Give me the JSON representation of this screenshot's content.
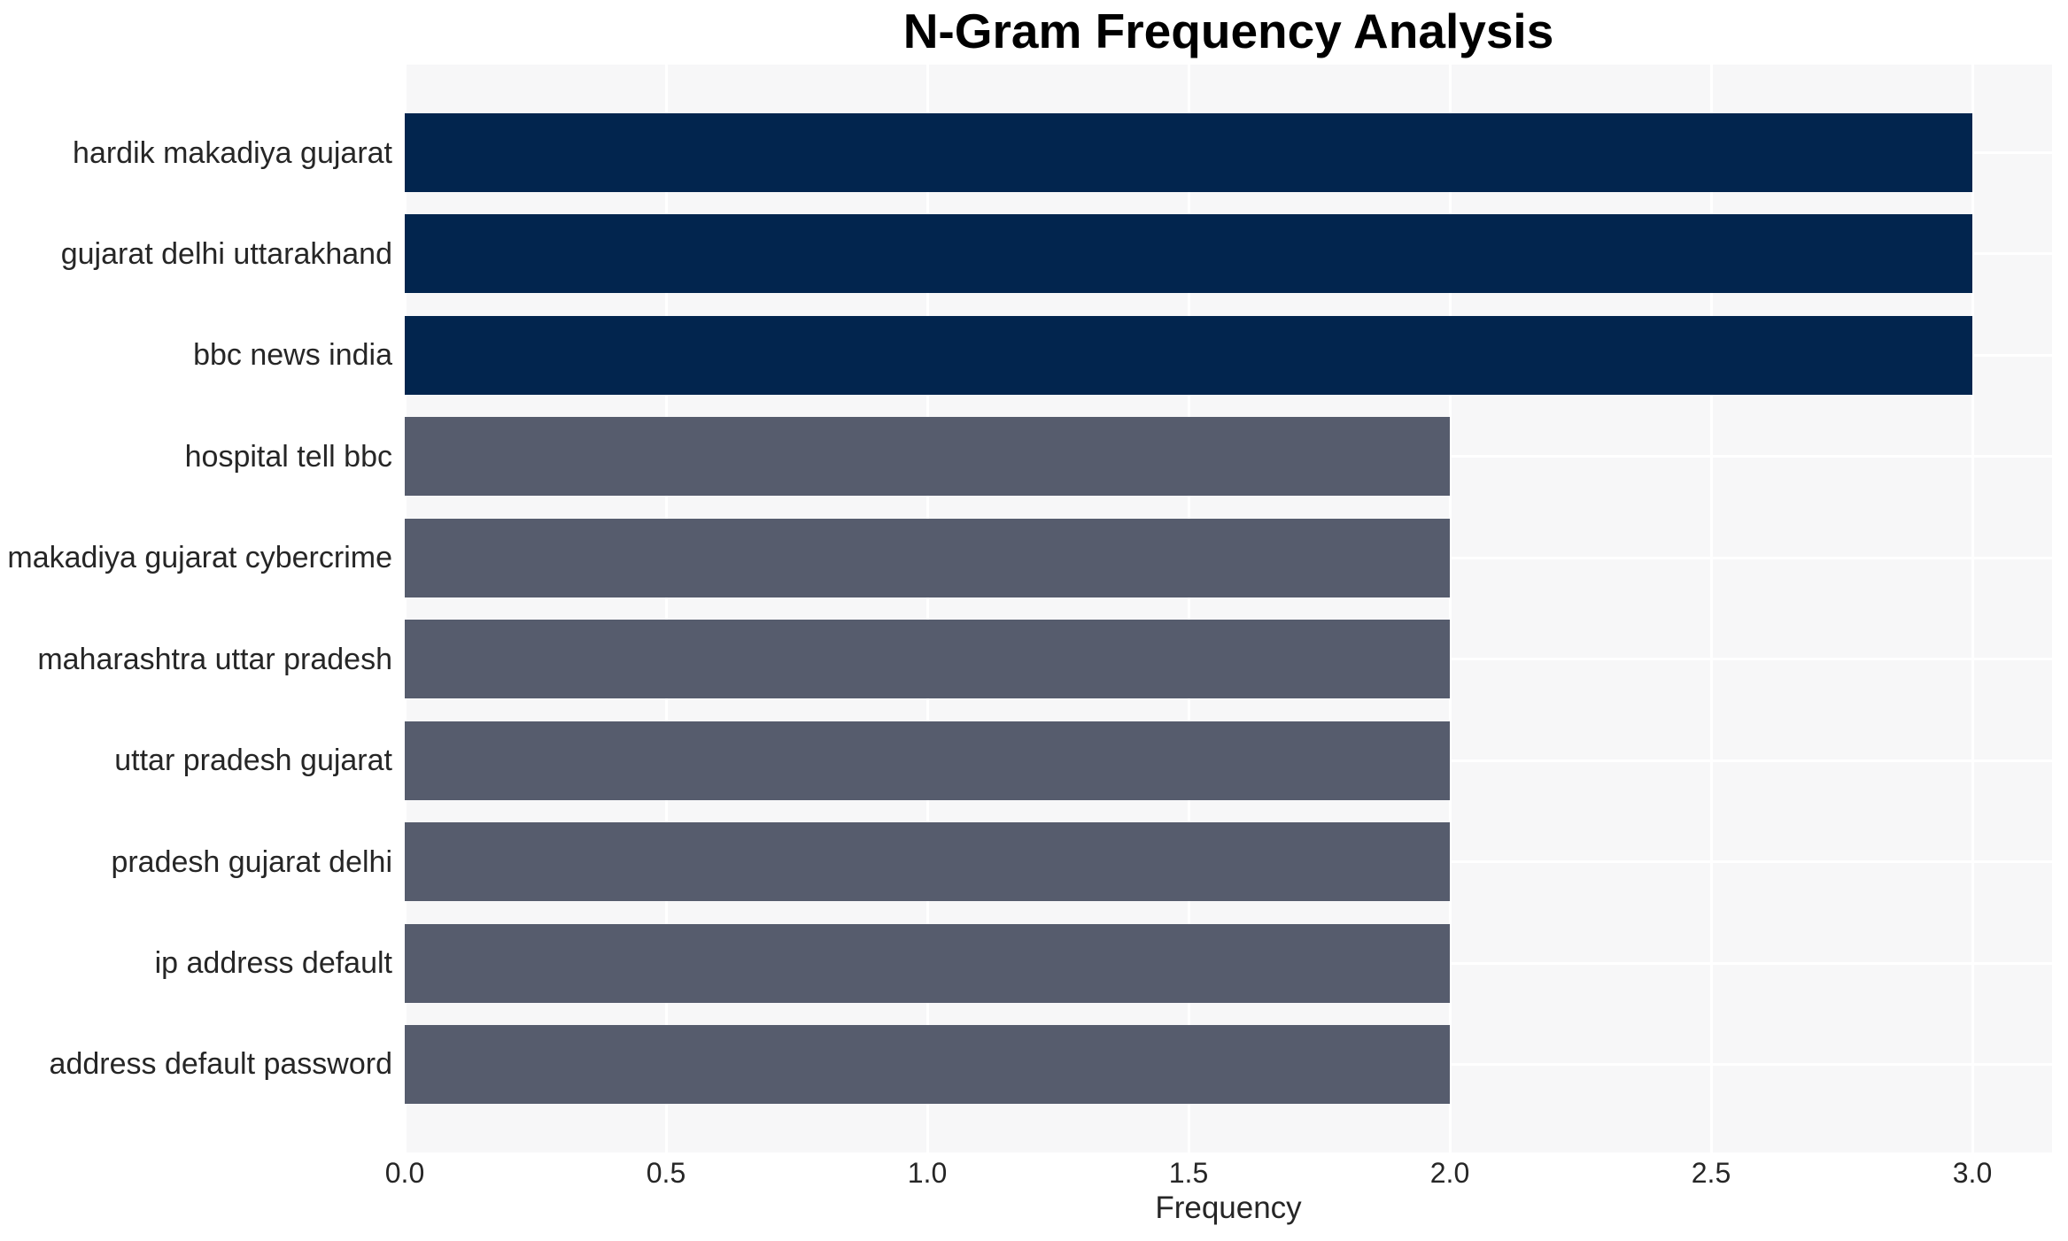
{
  "chart_data": {
    "type": "bar",
    "orientation": "horizontal",
    "title": "N-Gram Frequency Analysis",
    "xlabel": "Frequency",
    "ylabel": "",
    "categories": [
      "hardik makadiya gujarat",
      "gujarat delhi uttarakhand",
      "bbc news india",
      "hospital tell bbc",
      "makadiya gujarat cybercrime",
      "maharashtra uttar pradesh",
      "uttar pradesh gujarat",
      "pradesh gujarat delhi",
      "ip address default",
      "address default password"
    ],
    "values": [
      3,
      3,
      3,
      2,
      2,
      2,
      2,
      2,
      2,
      2
    ],
    "bar_colors": [
      "#02254e",
      "#02254e",
      "#02254e",
      "#565c6d",
      "#565c6d",
      "#565c6d",
      "#565c6d",
      "#565c6d",
      "#565c6d",
      "#565c6d"
    ],
    "xticks": [
      "0.0",
      "0.5",
      "1.0",
      "1.5",
      "2.0",
      "2.5",
      "3.0"
    ],
    "xtick_values": [
      0,
      0.5,
      1,
      1.5,
      2,
      2.5,
      3
    ],
    "xlim": [
      0,
      3.15
    ],
    "grid": true,
    "legend": "none",
    "colors": {
      "high_freq_bar": "#02254e",
      "low_freq_bar": "#565c6d",
      "plot_background": "#f7f7f8",
      "figure_background": "#ffffff",
      "gridline": "#ffffff",
      "tick_text": "#262626",
      "title_text": "#000000"
    }
  }
}
